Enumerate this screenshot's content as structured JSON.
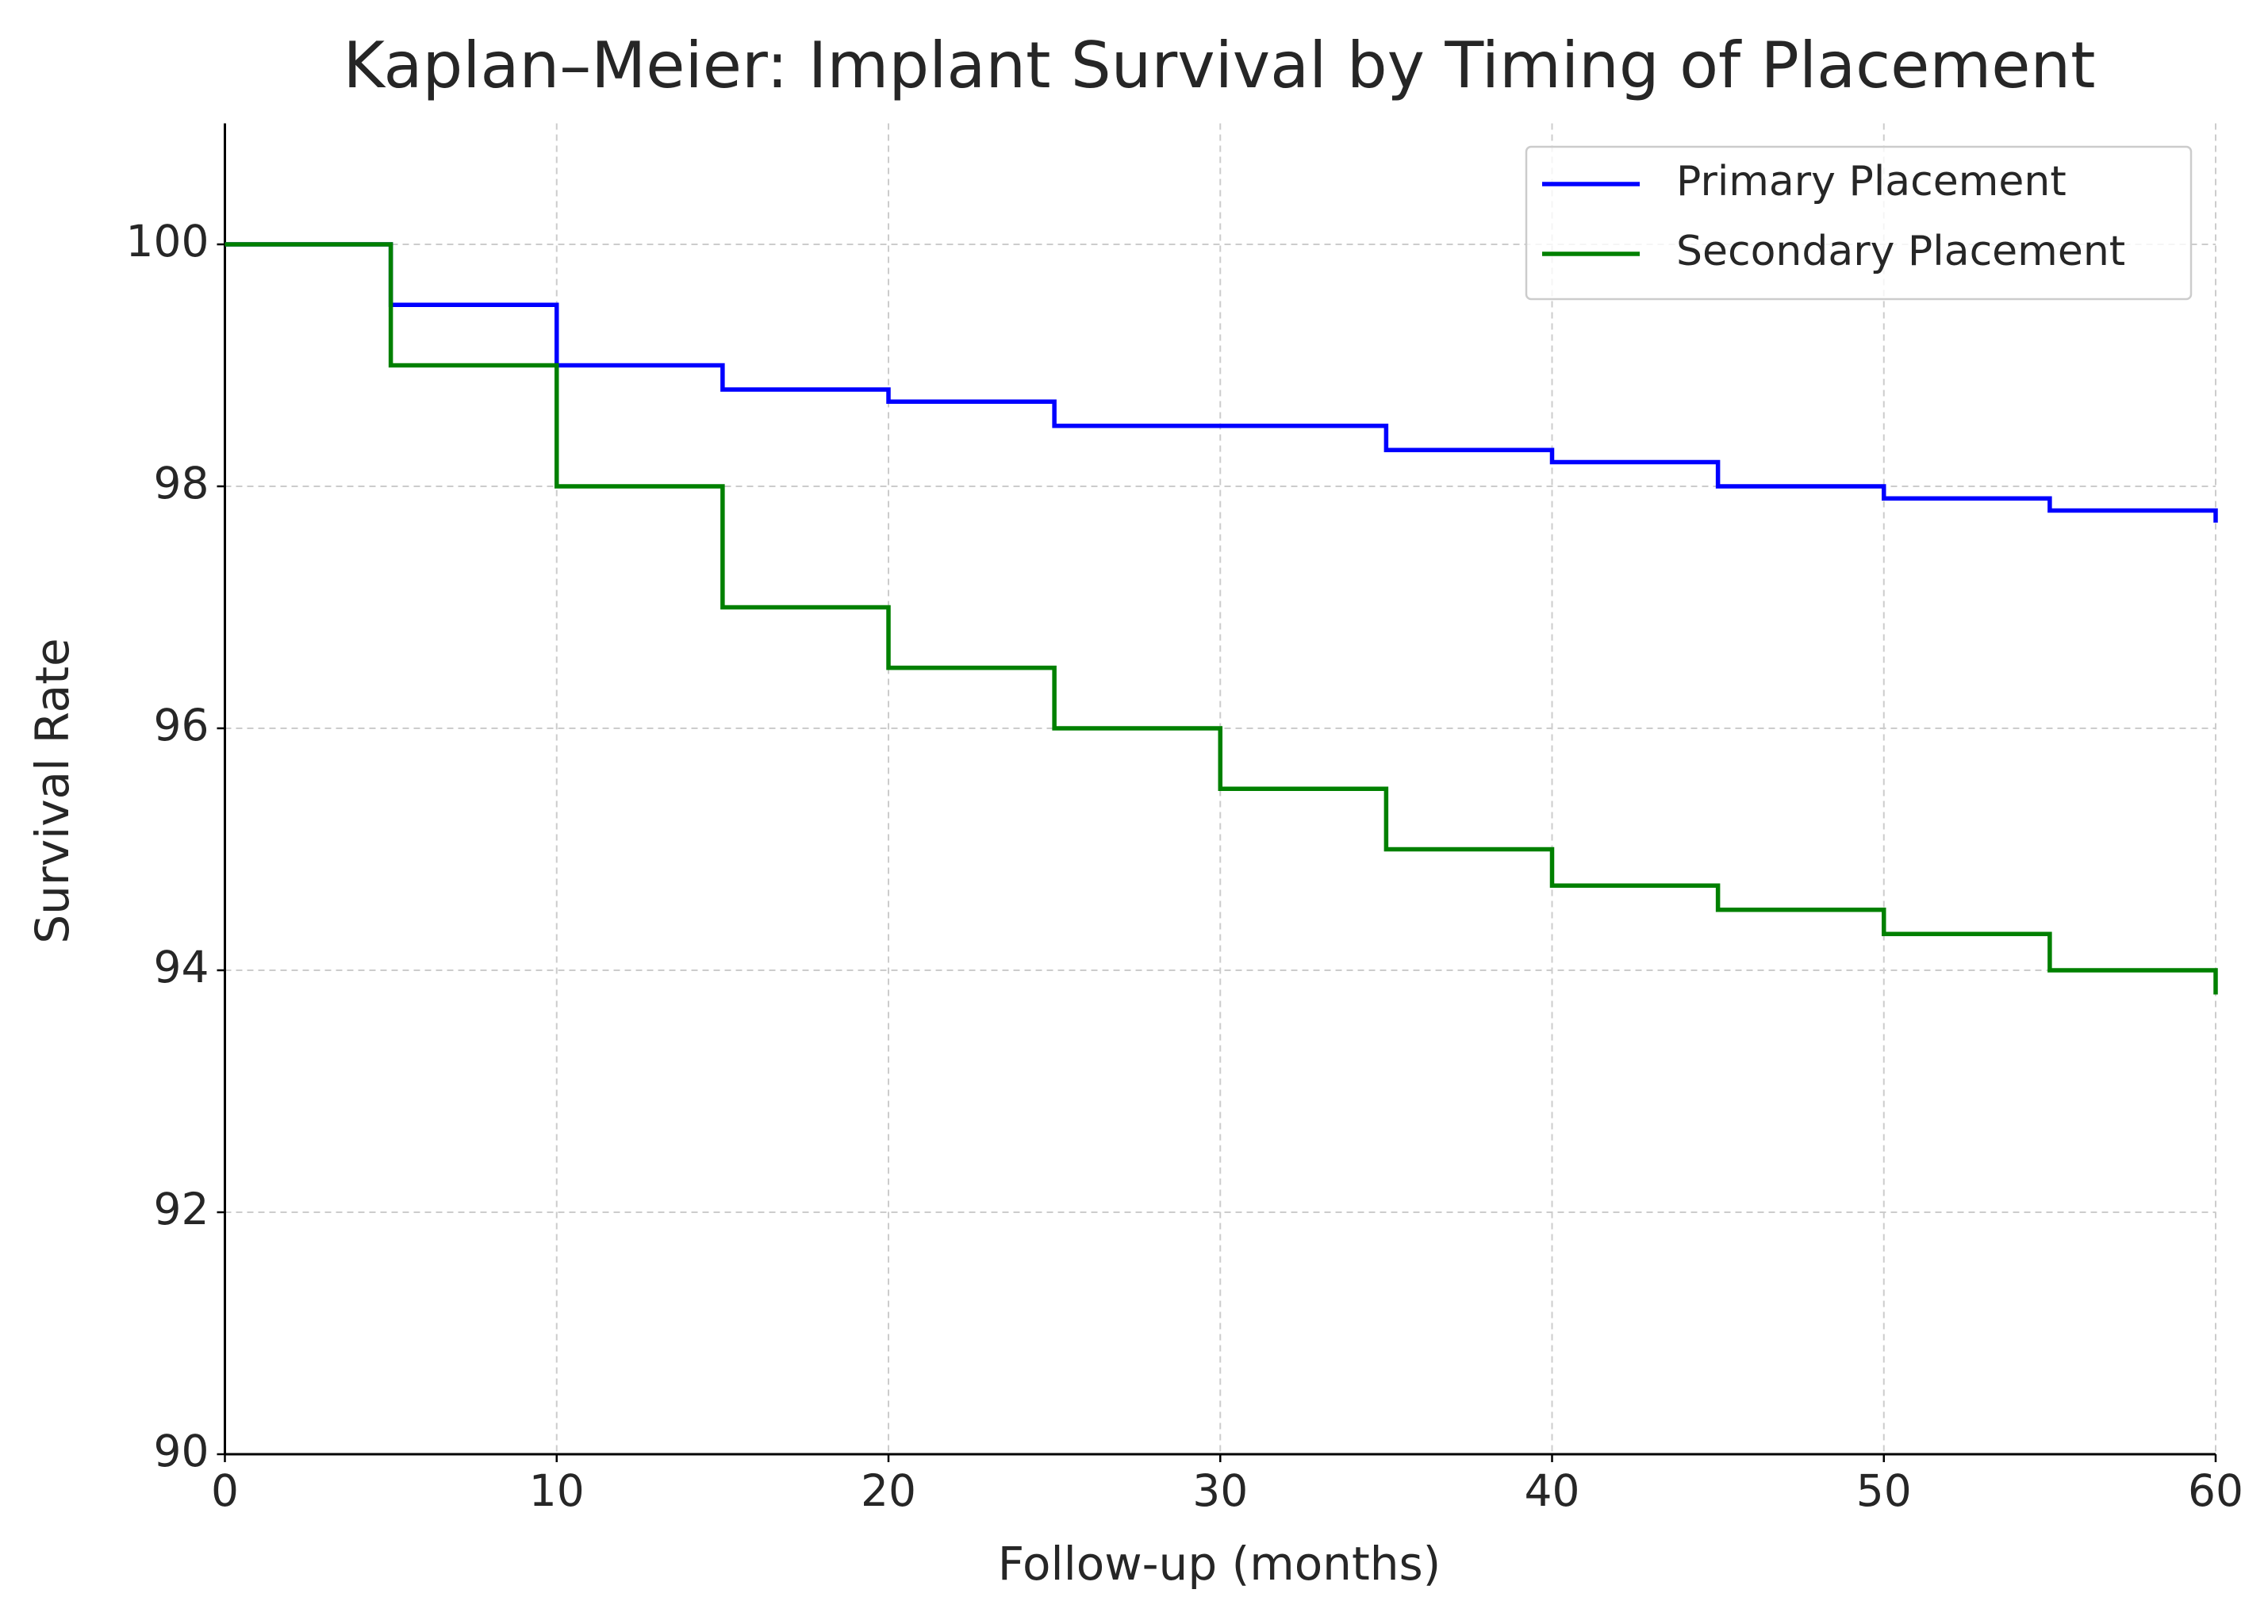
{
  "chart_data": {
    "type": "line",
    "drawstyle": "steps-post",
    "title": "Kaplan–Meier: Implant Survival by Timing of Placement",
    "x_label": "Follow-up (months)",
    "y_label": "Survival Rate",
    "x": [
      0,
      5,
      10,
      15,
      20,
      25,
      30,
      35,
      40,
      45,
      50,
      55,
      60
    ],
    "series": [
      {
        "name": "Primary Placement",
        "color": "#0000ff",
        "values": [
          100,
          99.5,
          99,
          98.8,
          98.7,
          98.5,
          98.5,
          98.3,
          98.2,
          98.0,
          97.9,
          97.8,
          97.7
        ]
      },
      {
        "name": "Secondary Placement",
        "color": "#008000",
        "values": [
          100,
          99,
          98,
          97,
          96.5,
          96,
          95.5,
          95,
          94.7,
          94.5,
          94.3,
          94.0,
          93.8
        ]
      }
    ],
    "xlim": [
      0,
      60
    ],
    "xticks": [
      0,
      10,
      20,
      30,
      40,
      50,
      60
    ],
    "ylim": [
      90,
      101
    ],
    "yticks": [
      90,
      92,
      94,
      96,
      98,
      100
    ],
    "grid": true,
    "legend": "upper right"
  }
}
